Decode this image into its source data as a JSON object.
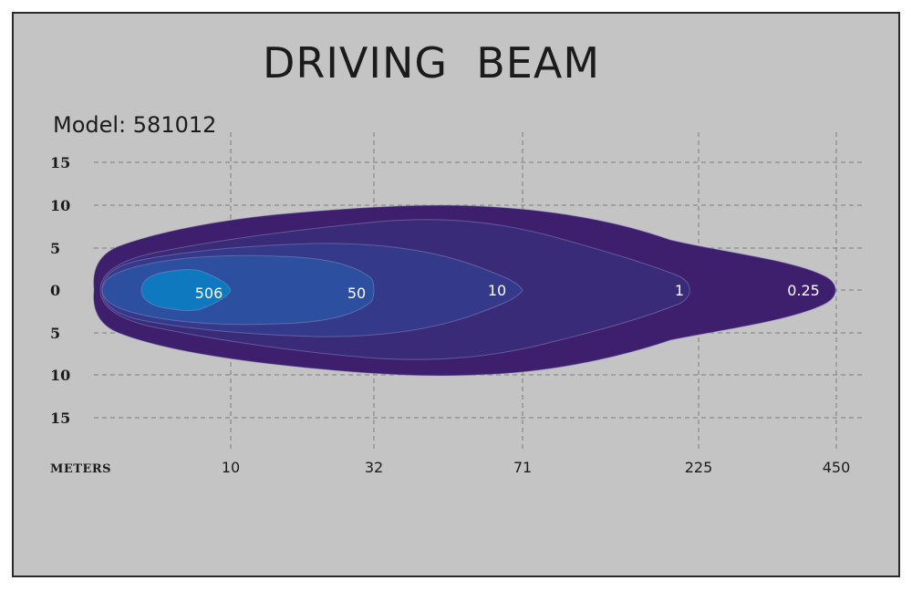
{
  "chart_data": {
    "type": "beam-pattern",
    "title": "DRIVING  BEAM",
    "subtitle": "Model: 581012",
    "xlabel": "Meters",
    "x_ticks": [
      "10",
      "32",
      "71",
      "225",
      "450"
    ],
    "y_ticks": [
      "15",
      "10",
      "5",
      "0",
      "5",
      "10",
      "15"
    ],
    "zones": [
      {
        "label": "0.25",
        "reach_m": 450,
        "color": "#3e1f6e"
      },
      {
        "label": "1",
        "reach_m": 225,
        "color": "#3a2b79"
      },
      {
        "label": "10",
        "reach_m": 71,
        "color": "#34398a"
      },
      {
        "label": "50",
        "reach_m": 32,
        "color": "#2c4f9f"
      },
      {
        "label": "506",
        "reach_m": 10,
        "color": "#0f79bf"
      }
    ],
    "colors": {
      "background": "#c4c4c4",
      "frame": "#2a2a2a",
      "grid": "#7d7d7d"
    }
  }
}
